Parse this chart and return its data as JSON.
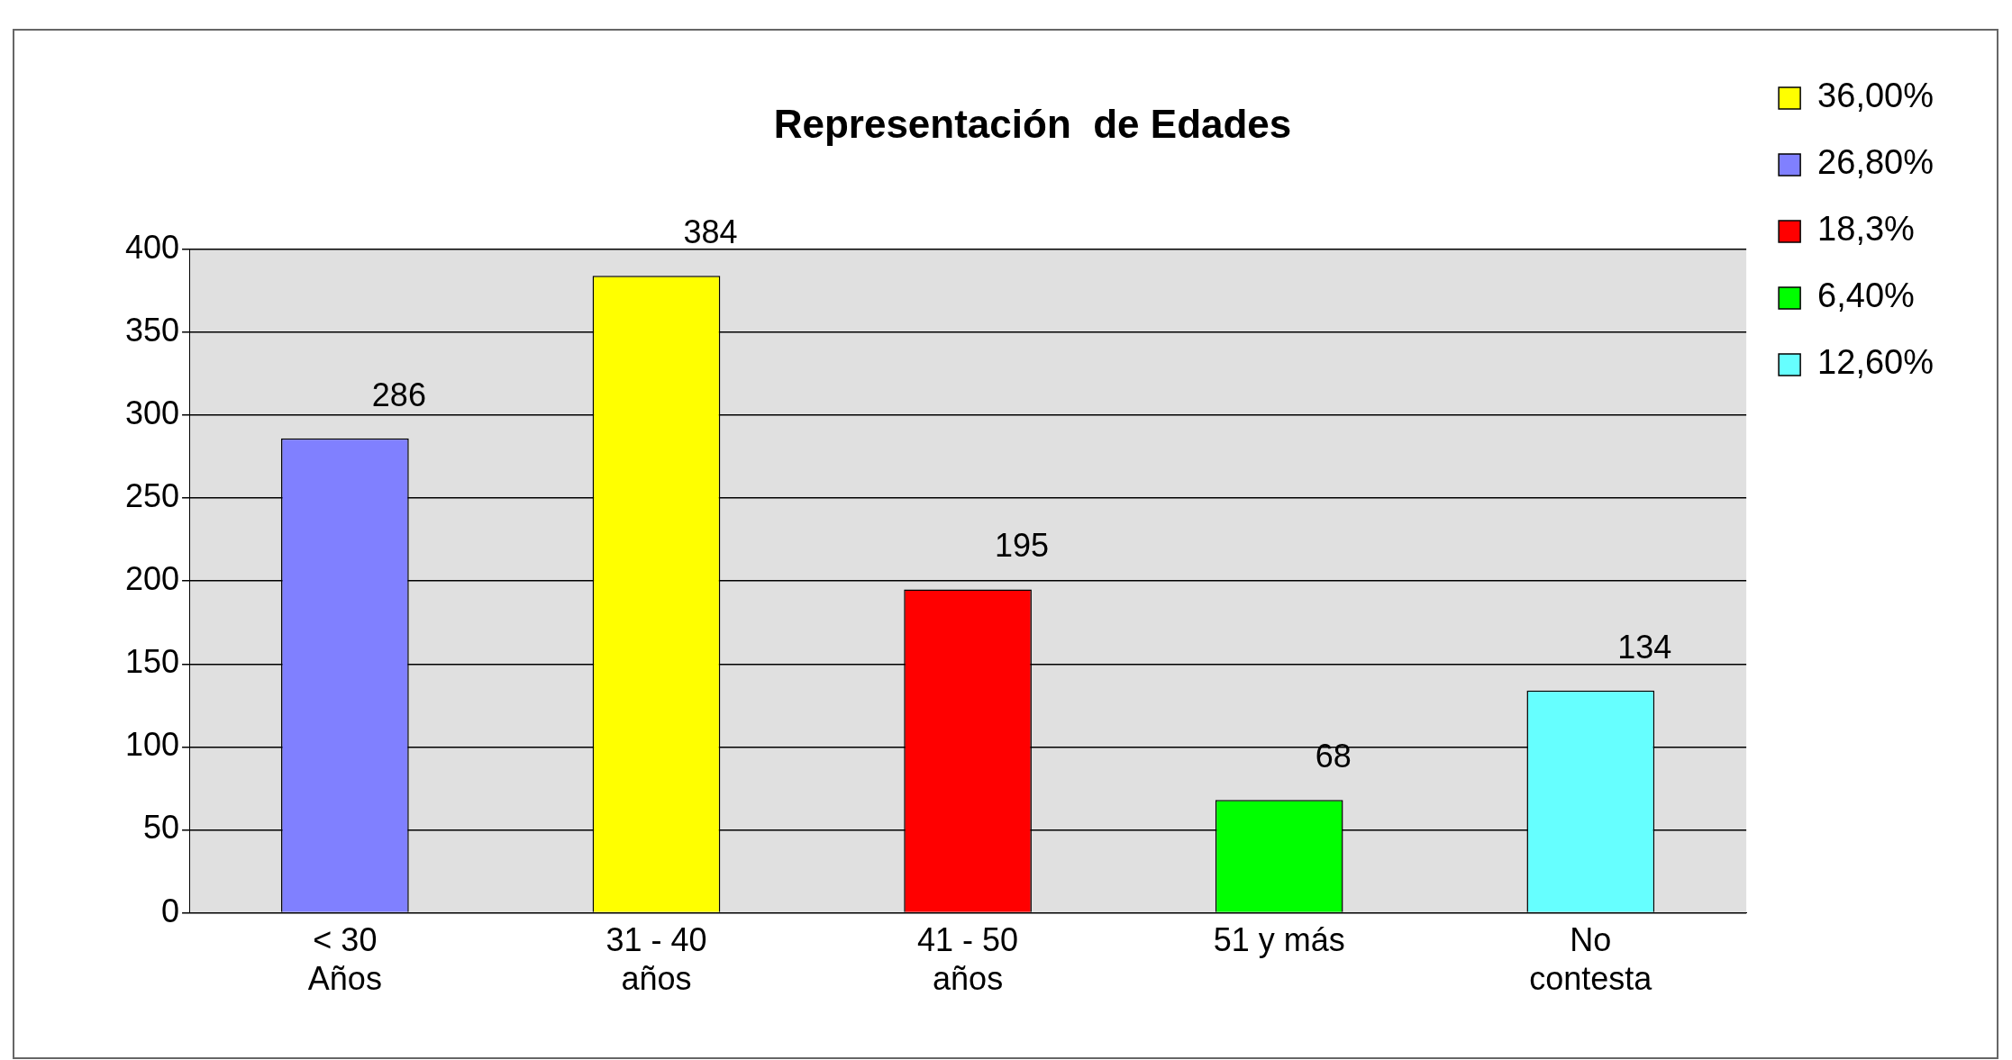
{
  "chart_data": {
    "type": "bar",
    "title": "Representación  de Edades",
    "categories": [
      "< 30\nAños",
      "31 - 40\naños",
      "41 - 50\naños",
      "51 y más",
      "No\ncontesta"
    ],
    "series": [
      {
        "name": "36,00%",
        "color": "#ffff00",
        "values": [
          null,
          384,
          null,
          null,
          null
        ]
      },
      {
        "name": "26,80%",
        "color": "#8080ff",
        "values": [
          286,
          null,
          null,
          null,
          null
        ]
      },
      {
        "name": "18,3%",
        "color": "#ff0000",
        "values": [
          null,
          null,
          195,
          null,
          null
        ]
      },
      {
        "name": "6,40%",
        "color": "#00ff00",
        "values": [
          null,
          null,
          null,
          68,
          null
        ]
      },
      {
        "name": "12,60%",
        "color": "#66ffff",
        "values": [
          null,
          null,
          null,
          null,
          134
        ]
      }
    ],
    "stacked": true,
    "ylim": [
      0,
      400
    ],
    "yticks": [
      0,
      50,
      100,
      150,
      200,
      250,
      300,
      350,
      400
    ],
    "grid": "y",
    "legend": "right",
    "data_labels": true
  }
}
